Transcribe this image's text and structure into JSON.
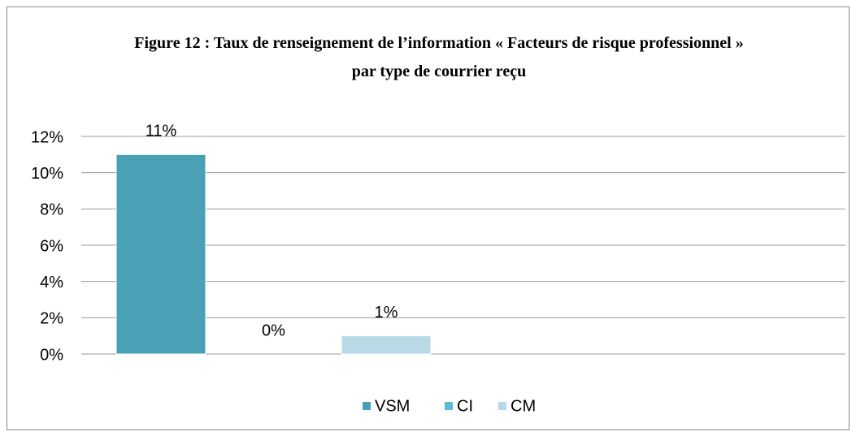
{
  "chart_data": {
    "type": "bar",
    "title": "Figure 12 : Taux de renseignement de l’information « Facteurs de risque professionnel » par type de courrier reçu",
    "categories": [
      null
    ],
    "series": [
      {
        "name": "VSM",
        "color": "#4aa0b5",
        "values": [
          11
        ],
        "value_labels": [
          "11%"
        ]
      },
      {
        "name": "CI",
        "color": "#5bbdd2",
        "values": [
          0
        ],
        "value_labels": [
          "0%"
        ]
      },
      {
        "name": "CM",
        "color": "#b8d9e6",
        "values": [
          1
        ],
        "value_labels": [
          "1%"
        ]
      }
    ],
    "ylim": [
      0,
      12
    ],
    "yticks": [
      {
        "value": 0,
        "label": "0%"
      },
      {
        "value": 2,
        "label": "2%"
      },
      {
        "value": 4,
        "label": "4%"
      },
      {
        "value": 6,
        "label": "6%"
      },
      {
        "value": 8,
        "label": "8%"
      },
      {
        "value": 10,
        "label": "10%"
      },
      {
        "value": 12,
        "label": "12%"
      }
    ],
    "grid": true,
    "legend": "bottom"
  }
}
